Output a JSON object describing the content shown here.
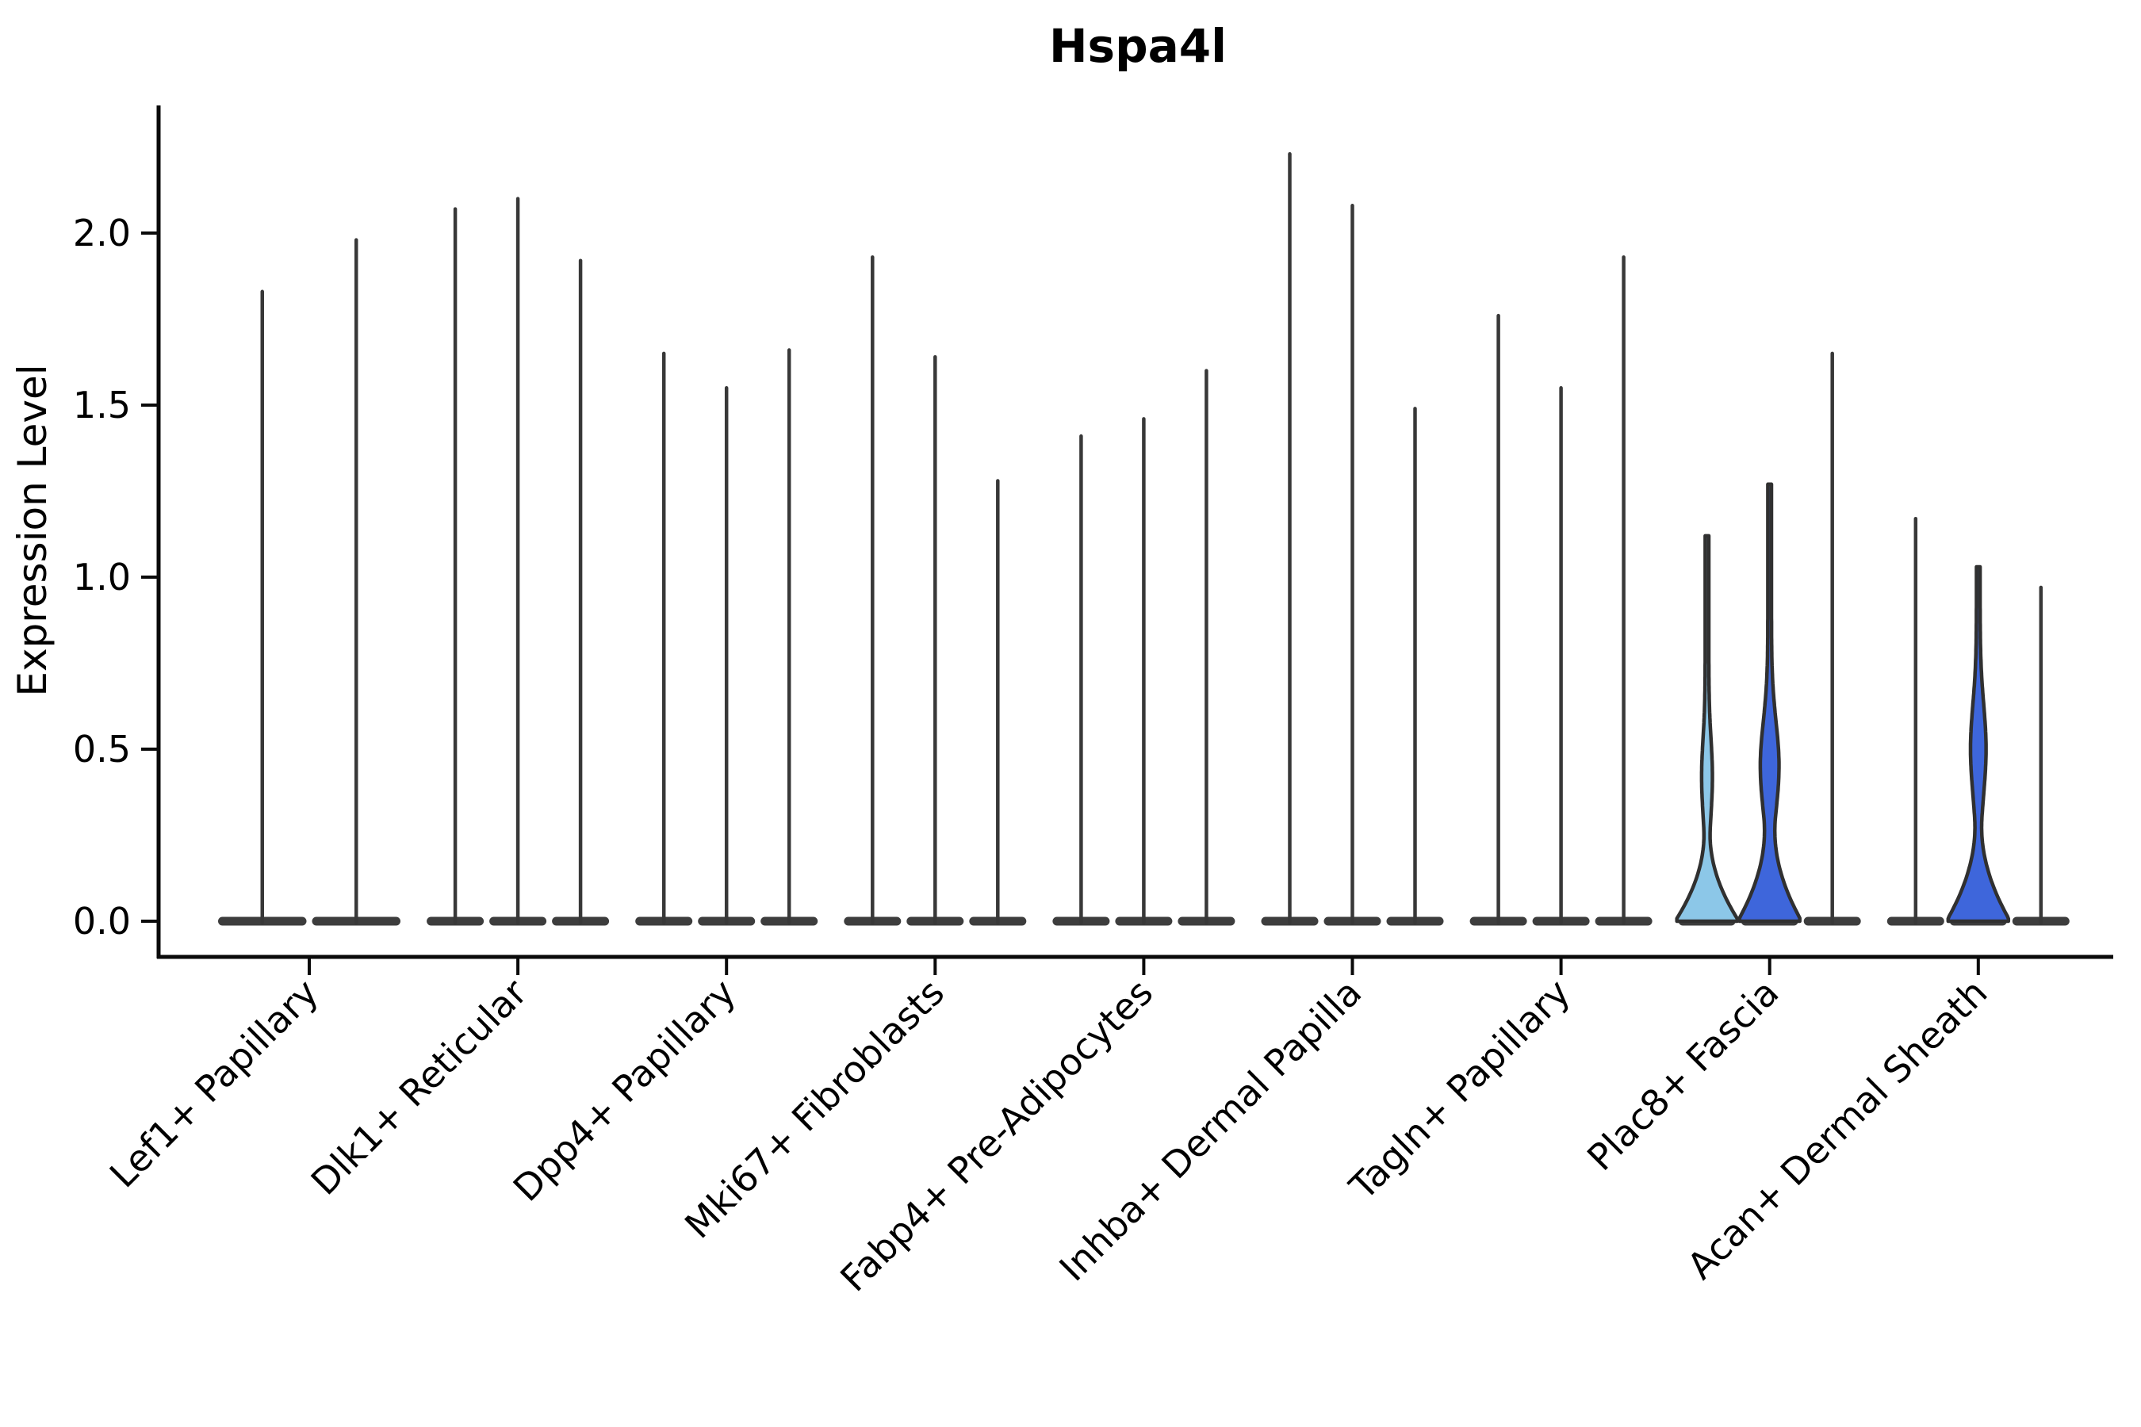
{
  "chart_data": {
    "type": "violin",
    "title": "Hspa4l",
    "xlabel": "",
    "ylabel": "Expression Level",
    "yticks": [
      0.0,
      0.5,
      1.0,
      1.5,
      2.0
    ],
    "ylim": [
      -0.1,
      2.37
    ],
    "grid": false,
    "legend": "none",
    "note": "Stacked violin plot of Hspa4l expression; each cell-type group contains 2-3 sample violins; bulk of density at 0 with thin spikes to the max expression value; three violins have visible filled density bodies",
    "categories": [
      "Lef1+ Papillary",
      "Dlk1+ Reticular",
      "Dpp4+ Papillary",
      "Mki67+ Fibroblasts",
      "Fabp4+ Pre-Adipocytes",
      "Inhba+ Dermal Papilla",
      "Tagln+ Papillary",
      "Plac8+ Fascia",
      "Acan+ Dermal Sheath"
    ],
    "groups": [
      {
        "label": "Lef1+ Papillary",
        "violins": [
          {
            "max": 1.83,
            "style": "spike"
          },
          {
            "max": 1.98,
            "style": "spike"
          }
        ]
      },
      {
        "label": "Dlk1+ Reticular",
        "violins": [
          {
            "max": 2.07,
            "style": "spike"
          },
          {
            "max": 2.1,
            "style": "spike"
          },
          {
            "max": 1.92,
            "style": "spike"
          }
        ]
      },
      {
        "label": "Dpp4+ Papillary",
        "violins": [
          {
            "max": 1.65,
            "style": "spike"
          },
          {
            "max": 1.55,
            "style": "spike"
          },
          {
            "max": 1.66,
            "style": "spike"
          }
        ]
      },
      {
        "label": "Mki67+ Fibroblasts",
        "violins": [
          {
            "max": 1.93,
            "style": "spike"
          },
          {
            "max": 1.64,
            "style": "spike"
          },
          {
            "max": 1.28,
            "style": "spike"
          }
        ]
      },
      {
        "label": "Fabp4+ Pre-Adipocytes",
        "violins": [
          {
            "max": 1.41,
            "style": "spike"
          },
          {
            "max": 1.46,
            "style": "spike"
          },
          {
            "max": 1.6,
            "style": "spike"
          }
        ]
      },
      {
        "label": "Inhba+ Dermal Papilla",
        "violins": [
          {
            "max": 2.23,
            "style": "spike"
          },
          {
            "max": 2.08,
            "style": "spike"
          },
          {
            "max": 1.49,
            "style": "spike"
          }
        ]
      },
      {
        "label": "Tagln+ Papillary",
        "violins": [
          {
            "max": 1.76,
            "style": "spike"
          },
          {
            "max": 1.55,
            "style": "spike"
          },
          {
            "max": 1.93,
            "style": "spike"
          }
        ]
      },
      {
        "label": "Plac8+ Fascia",
        "violins": [
          {
            "max": 1.12,
            "style": "filled",
            "fill": "#8CC7E8",
            "flare_v": 0.27,
            "bulge_v": 0.42,
            "bulge_hw": 4.5,
            "bulge_sigma": 0.11
          },
          {
            "max": 1.27,
            "style": "filled",
            "fill": "#3E66DB",
            "flare_v": 0.31,
            "bulge_v": 0.45,
            "bulge_hw": 9.5,
            "bulge_sigma": 0.13
          },
          {
            "max": 1.65,
            "style": "spike"
          }
        ]
      },
      {
        "label": "Acan+ Dermal Sheath",
        "violins": [
          {
            "max": 1.17,
            "style": "spike"
          },
          {
            "max": 1.03,
            "style": "filled",
            "fill": "#3E66DB",
            "flare_v": 0.3,
            "bulge_v": 0.5,
            "bulge_hw": 7.5,
            "bulge_sigma": 0.13
          },
          {
            "max": 0.97,
            "style": "spike"
          }
        ]
      }
    ],
    "colors": {
      "spike_stroke": "#383838",
      "violin_outline": "#303030",
      "baseline_blob": "#3d3d3d",
      "axis": "#0a0a0a",
      "fill_light_blue": "#8CC7E8",
      "fill_blue": "#3E66DB",
      "background": "#ffffff"
    }
  }
}
